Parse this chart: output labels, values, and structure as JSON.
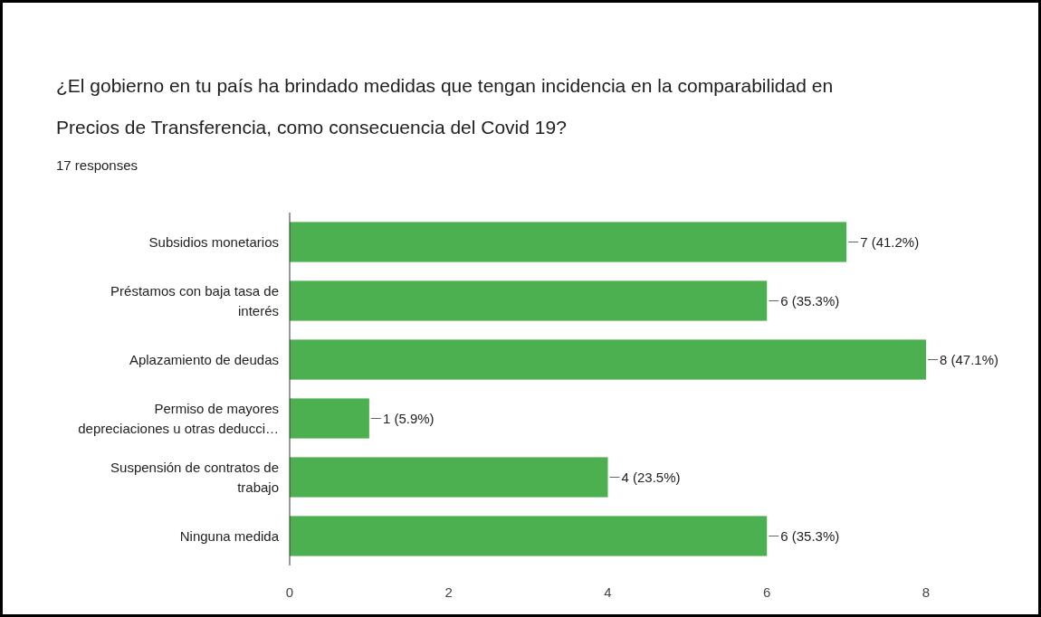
{
  "chart_data": {
    "type": "bar",
    "orientation": "horizontal",
    "title": "¿El gobierno en tu país ha brindado medidas que tengan incidencia en la comparabilidad en Precios de Transferencia, como consecuencia del Covid 19?",
    "subtitle": "17 responses",
    "categories": [
      "Subsidios monetarios",
      "Préstamos con baja tasa de interés",
      "Aplazamiento de deudas",
      "Permiso de mayores depreciaciones u otras deducci…",
      "Suspensión de contratos de trabajo",
      "Ninguna medida"
    ],
    "values": [
      7,
      6,
      8,
      1,
      4,
      6
    ],
    "value_labels": [
      "7 (41.2%)",
      "6 (35.3%)",
      "8 (47.1%)",
      "1 (5.9%)",
      "4 (23.5%)",
      "6 (35.3%)"
    ],
    "color": "#4caf50",
    "xlim": [
      0,
      8
    ],
    "xticks": [
      0,
      2,
      4,
      6,
      8
    ],
    "grid": false
  }
}
